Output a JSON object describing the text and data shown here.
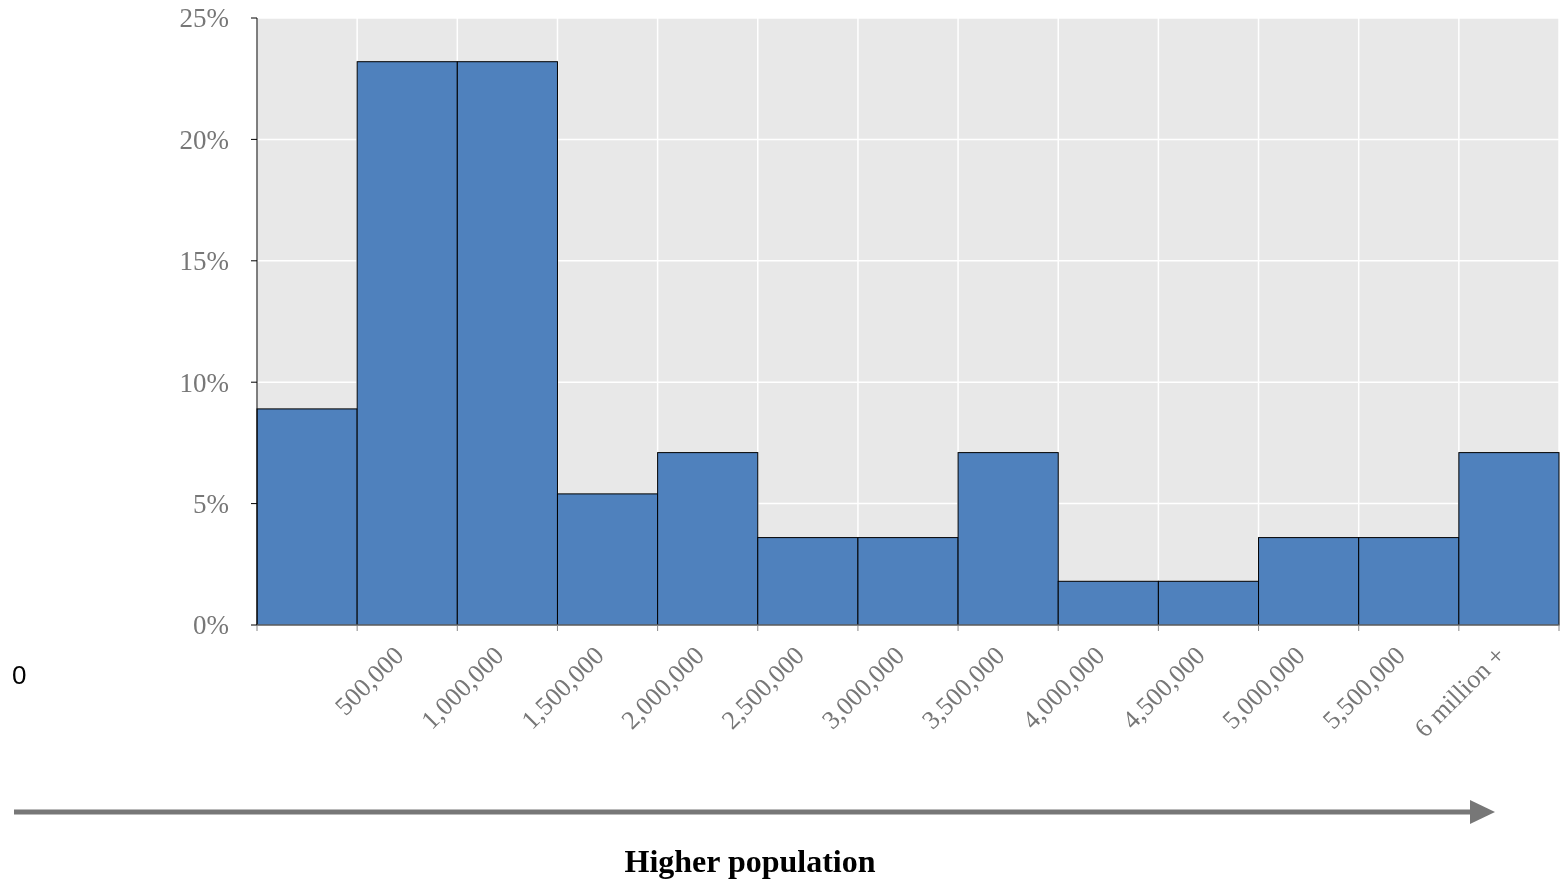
{
  "chart_data": {
    "type": "histogram",
    "xlabel": "Higher population",
    "bins": [
      0,
      500000,
      1000000,
      1500000,
      2000000,
      2500000,
      3000000,
      3500000,
      4000000,
      4500000,
      5000000,
      5500000,
      6000000,
      6500000
    ],
    "values": [
      8.9,
      23.2,
      23.2,
      5.4,
      7.1,
      3.6,
      3.6,
      7.1,
      1.8,
      1.8,
      3.6,
      3.6,
      7.1
    ],
    "color": "#4f81bd",
    "xlim": [
      0,
      6500000
    ],
    "xticks": [
      {
        "value": 0,
        "label": null
      },
      {
        "value": 500000,
        "label": "500,000"
      },
      {
        "value": 1000000,
        "label": "1,000,000"
      },
      {
        "value": 1500000,
        "label": "1,500,000"
      },
      {
        "value": 2000000,
        "label": "2,000,000"
      },
      {
        "value": 2500000,
        "label": "2,500,000"
      },
      {
        "value": 3000000,
        "label": "3,000,000"
      },
      {
        "value": 3500000,
        "label": "3,500,000"
      },
      {
        "value": 4000000,
        "label": "4,000,000"
      },
      {
        "value": 4500000,
        "label": "4,500,000"
      },
      {
        "value": 5000000,
        "label": "5,000,000"
      },
      {
        "value": 5500000,
        "label": "5,500,000"
      },
      {
        "value": 6000000,
        "label": "6 million +"
      },
      {
        "value": 6500000,
        "label": null
      }
    ],
    "ylim": [
      0,
      25
    ],
    "yticks": [
      {
        "value": 0,
        "label": "0%"
      },
      {
        "value": 5,
        "label": "5%"
      },
      {
        "value": 10,
        "label": "10%"
      },
      {
        "value": 15,
        "label": "15%"
      },
      {
        "value": 20,
        "label": "20%"
      },
      {
        "value": 25,
        "label": "25%"
      }
    ],
    "grid": true,
    "annotations": [
      "0"
    ]
  }
}
